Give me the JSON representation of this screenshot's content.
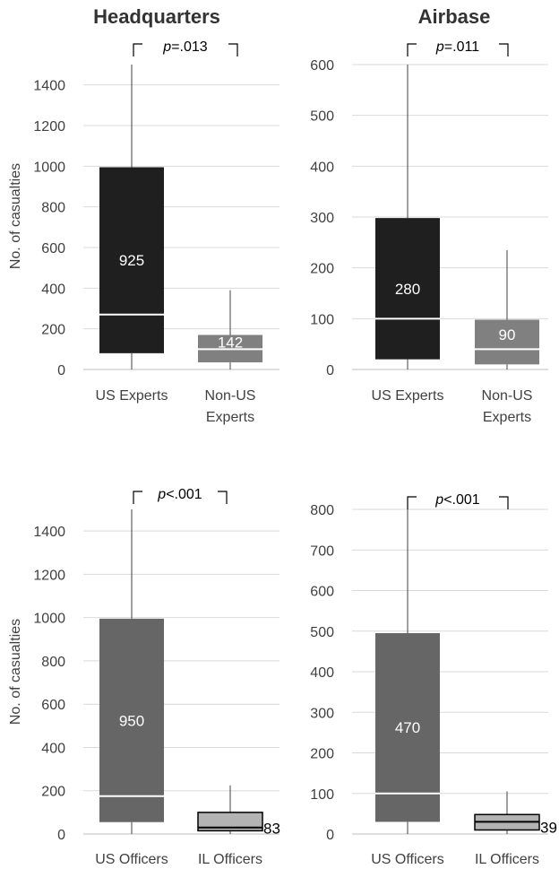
{
  "chart_data": [
    {
      "type": "box",
      "title": "Headquarters",
      "ylabel": "No. of casualties",
      "ylim": [
        0,
        1500
      ],
      "yticks": [
        0,
        200,
        400,
        600,
        800,
        1000,
        1200,
        1400
      ],
      "grid": true,
      "pvalue": {
        "p": "p",
        "rest": "=.013"
      },
      "boxes": [
        {
          "category": "US Experts",
          "category_lines": [
            "US Experts"
          ],
          "whisker_low": 0,
          "q1": 80,
          "median": 270,
          "q3": 995,
          "whisker_high": 1500,
          "label": "925",
          "color": "#1f1f1f",
          "median_color": "#ffffff",
          "label_color": "#ffffff",
          "label_pos": "inside",
          "border": false
        },
        {
          "category": "Non-US Experts",
          "category_lines": [
            "Non-US",
            "Experts"
          ],
          "whisker_low": 0,
          "q1": 35,
          "median": 100,
          "q3": 170,
          "whisker_high": 390,
          "label": "142",
          "color": "#808080",
          "median_color": "#ffffff",
          "label_color": "#ffffff",
          "label_pos": "inside",
          "border": false
        }
      ]
    },
    {
      "type": "box",
      "title": "Airbase",
      "ylabel": "",
      "ylim": [
        0,
        600
      ],
      "yticks": [
        0,
        100,
        200,
        300,
        400,
        500,
        600
      ],
      "grid": true,
      "pvalue": {
        "p": "p",
        "rest": "=.011"
      },
      "boxes": [
        {
          "category": "US Experts",
          "category_lines": [
            "US Experts"
          ],
          "whisker_low": 0,
          "q1": 20,
          "median": 100,
          "q3": 298,
          "whisker_high": 600,
          "label": "280",
          "color": "#1f1f1f",
          "median_color": "#ffffff",
          "label_color": "#ffffff",
          "label_pos": "inside",
          "border": false
        },
        {
          "category": "Non-US Experts",
          "category_lines": [
            "Non-US",
            "Experts"
          ],
          "whisker_low": 0,
          "q1": 10,
          "median": 40,
          "q3": 98,
          "whisker_high": 235,
          "label": "90",
          "color": "#808080",
          "median_color": "#ffffff",
          "label_color": "#ffffff",
          "label_pos": "inside",
          "border": false
        }
      ]
    },
    {
      "type": "box",
      "title": "",
      "ylabel": "No. of casualties",
      "ylim": [
        0,
        1500
      ],
      "yticks": [
        0,
        200,
        400,
        600,
        800,
        1000,
        1200,
        1400
      ],
      "grid": true,
      "pvalue": {
        "p": "p",
        "rest": "<.001"
      },
      "boxes": [
        {
          "category": "US Officers",
          "category_lines": [
            "US Officers"
          ],
          "whisker_low": 0,
          "q1": 55,
          "median": 175,
          "q3": 995,
          "whisker_high": 1500,
          "label": "950",
          "color": "#666666",
          "median_color": "#ffffff",
          "label_color": "#ffffff",
          "label_pos": "inside",
          "border": false
        },
        {
          "category": "IL Officers",
          "category_lines": [
            "IL Officers"
          ],
          "whisker_low": 0,
          "q1": 15,
          "median": 30,
          "q3": 100,
          "whisker_high": 225,
          "label": "83",
          "color": "#b3b3b3",
          "median_color": "#000000",
          "label_color": "#000000",
          "label_pos": "right",
          "border": true
        }
      ]
    },
    {
      "type": "box",
      "title": "",
      "ylabel": "",
      "ylim": [
        0,
        800
      ],
      "yticks": [
        0,
        100,
        200,
        300,
        400,
        500,
        600,
        700,
        800
      ],
      "grid": true,
      "pvalue": {
        "p": "p",
        "rest": "<.001"
      },
      "boxes": [
        {
          "category": "US Officers",
          "category_lines": [
            "US Officers"
          ],
          "whisker_low": 0,
          "q1": 30,
          "median": 100,
          "q3": 495,
          "whisker_high": 800,
          "label": "470",
          "color": "#666666",
          "median_color": "#ffffff",
          "label_color": "#ffffff",
          "label_pos": "inside",
          "border": false
        },
        {
          "category": "IL Officers",
          "category_lines": [
            "IL Officers"
          ],
          "whisker_low": 0,
          "q1": 10,
          "median": 30,
          "q3": 48,
          "whisker_high": 105,
          "label": "39",
          "color": "#b3b3b3",
          "median_color": "#000000",
          "label_color": "#000000",
          "label_pos": "right",
          "border": true
        }
      ]
    }
  ]
}
